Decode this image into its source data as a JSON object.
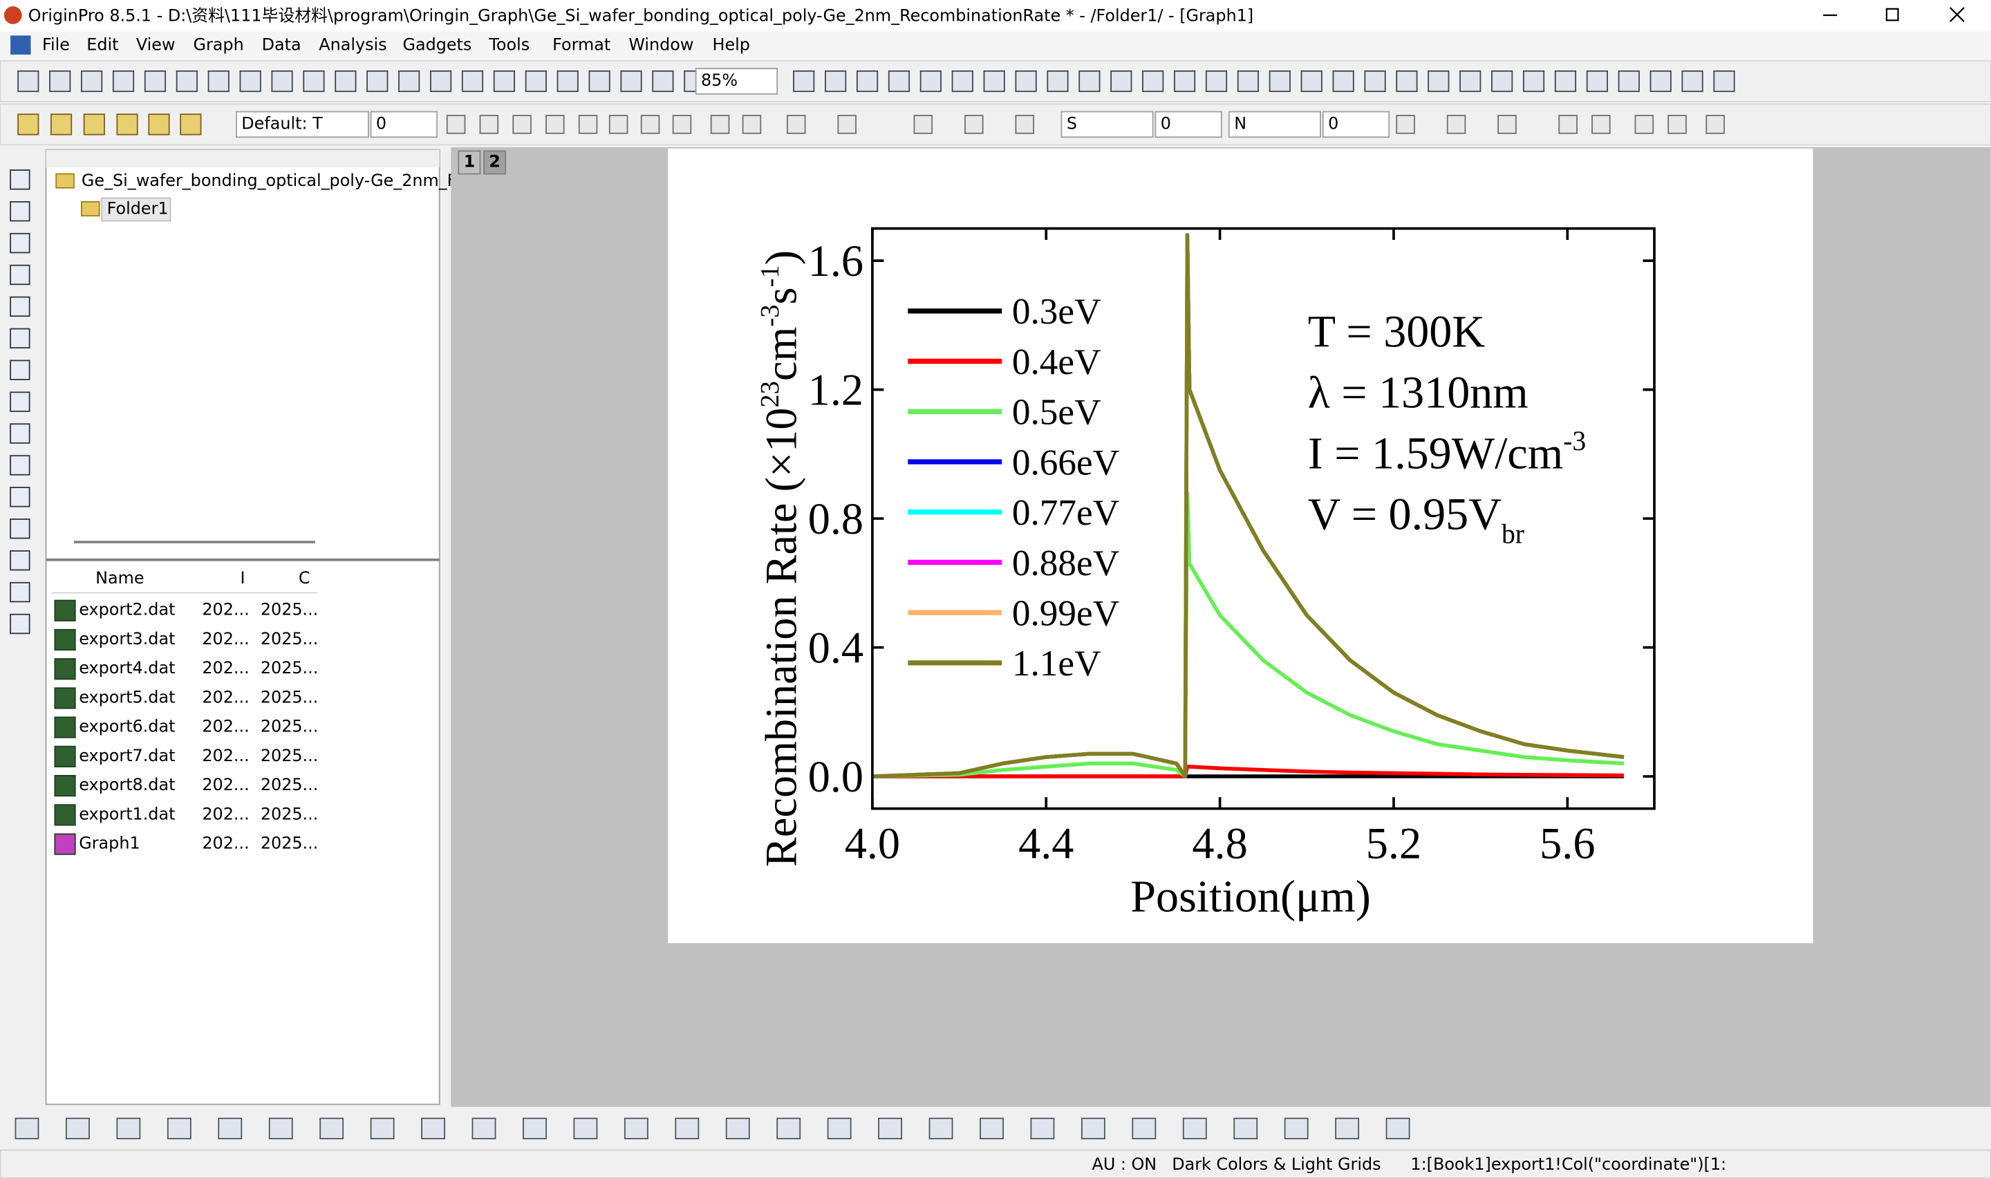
{
  "window": {
    "title": "OriginPro 8.5.1 - D:\\资料\\111毕设材料\\program\\Oringin_Graph\\Ge_Si_wafer_bonding_optical_poly-Ge_2nm_RecombinationRate * - /Folder1/ - [Graph1]"
  },
  "menu": [
    "File",
    "Edit",
    "View",
    "Graph",
    "Data",
    "Analysis",
    "Gadgets",
    "Tools",
    "Format",
    "Window",
    "Help"
  ],
  "toolbar": {
    "zoom": "85%",
    "font": "Default: T",
    "font_size": "0",
    "line_style": "S",
    "line_width": "0",
    "fill": "N",
    "fill_value": "0"
  },
  "project": {
    "root": "Ge_Si_wafer_bonding_optical_poly-Ge_2nm_F",
    "folder": "Folder1",
    "columns": [
      "Name",
      "I",
      "C"
    ],
    "files": [
      {
        "name": "export2.dat",
        "modified": "202...",
        "created": "2025..."
      },
      {
        "name": "export3.dat",
        "modified": "202...",
        "created": "2025..."
      },
      {
        "name": "export4.dat",
        "modified": "202...",
        "created": "2025..."
      },
      {
        "name": "export5.dat",
        "modified": "202...",
        "created": "2025..."
      },
      {
        "name": "export6.dat",
        "modified": "202...",
        "created": "2025..."
      },
      {
        "name": "export7.dat",
        "modified": "202...",
        "created": "2025..."
      },
      {
        "name": "export8.dat",
        "modified": "202...",
        "created": "2025..."
      },
      {
        "name": "export1.dat",
        "modified": "202...",
        "created": "2025..."
      },
      {
        "name": "Graph1",
        "modified": "202...",
        "created": "2025..."
      }
    ]
  },
  "pages": [
    "1",
    "2"
  ],
  "status": [
    "AU : ON",
    "Dark Colors & Light Grids",
    "1:[Book1]export1!Col(\"coordinate\")[1:"
  ],
  "chart_data": {
    "type": "line",
    "xlabel": "Position(μm)",
    "ylabel_parts": [
      {
        "text": "Recombination Rate (×10"
      },
      {
        "text": "23",
        "sup": true
      },
      {
        "text": "cm"
      },
      {
        "text": "-3",
        "sup": true
      },
      {
        "text": "s"
      },
      {
        "text": "-1",
        "sup": true
      },
      {
        "text": ")"
      }
    ],
    "annotations": [
      {
        "parts": [
          {
            "text": "T = 300K"
          }
        ]
      },
      {
        "parts": [
          {
            "text": "λ = 1310nm"
          }
        ]
      },
      {
        "parts": [
          {
            "text": "I = 1.59W/cm"
          },
          {
            "text": "-3",
            "sup": true
          }
        ]
      },
      {
        "parts": [
          {
            "text": "V = 0.95V"
          },
          {
            "text": "br",
            "sub": true
          }
        ]
      }
    ],
    "xlim": [
      4.0,
      5.8
    ],
    "ylim": [
      -0.1,
      1.7
    ],
    "xticks": [
      {
        "value": 4,
        "label": "4.0"
      },
      4.4,
      4.8,
      5.2,
      5.6
    ],
    "yticks": [
      {
        "value": 0,
        "label": "0.0"
      },
      0.4,
      0.8,
      1.2,
      1.6
    ],
    "x": [
      4.0,
      4.2,
      4.3,
      4.4,
      4.5,
      4.6,
      4.7,
      4.72,
      4.725,
      4.73,
      4.8,
      4.9,
      5.0,
      5.1,
      5.2,
      5.3,
      5.4,
      5.5,
      5.6,
      5.73
    ],
    "series": [
      {
        "name": "0.3eV",
        "color": "#000000",
        "values": [
          0,
          0,
          0,
          0,
          0,
          0,
          0,
          0,
          0,
          0,
          0,
          0,
          0,
          0,
          0,
          0,
          0,
          0,
          0,
          0
        ]
      },
      {
        "name": "0.4eV",
        "color": "#ff0000",
        "values": [
          0,
          0,
          0,
          0,
          0,
          0,
          0,
          0,
          0.03,
          0.03,
          0.025,
          0.02,
          0.015,
          0.012,
          0.01,
          0.008,
          0.006,
          0.005,
          0.004,
          0.003
        ]
      },
      {
        "name": "0.5eV",
        "color": "#66ee55",
        "values": [
          0,
          0.005,
          0.02,
          0.03,
          0.04,
          0.04,
          0.02,
          0,
          0.88,
          0.66,
          0.5,
          0.36,
          0.26,
          0.19,
          0.14,
          0.1,
          0.08,
          0.06,
          0.05,
          0.04
        ]
      },
      {
        "name": "0.66eV",
        "color": "#0000ee",
        "values": [
          0,
          0.01,
          0.04,
          0.06,
          0.07,
          0.07,
          0.04,
          0,
          1.68,
          1.2,
          0.95,
          0.7,
          0.5,
          0.36,
          0.26,
          0.19,
          0.14,
          0.1,
          0.08,
          0.06
        ]
      },
      {
        "name": "0.77eV",
        "color": "#00ffff",
        "values": [
          0,
          0.01,
          0.04,
          0.06,
          0.07,
          0.07,
          0.04,
          0,
          1.68,
          1.2,
          0.95,
          0.7,
          0.5,
          0.36,
          0.26,
          0.19,
          0.14,
          0.1,
          0.08,
          0.06
        ]
      },
      {
        "name": "0.88eV",
        "color": "#ff00ff",
        "values": [
          0,
          0.01,
          0.04,
          0.06,
          0.07,
          0.07,
          0.04,
          0,
          1.68,
          1.2,
          0.95,
          0.7,
          0.5,
          0.36,
          0.26,
          0.19,
          0.14,
          0.1,
          0.08,
          0.06
        ]
      },
      {
        "name": "0.99eV",
        "color": "#ffb366",
        "values": [
          0,
          0.01,
          0.04,
          0.06,
          0.07,
          0.07,
          0.04,
          0,
          1.68,
          1.2,
          0.95,
          0.7,
          0.5,
          0.36,
          0.26,
          0.19,
          0.14,
          0.1,
          0.08,
          0.06
        ]
      },
      {
        "name": "1.1eV",
        "color": "#808020",
        "values": [
          0,
          0.01,
          0.04,
          0.06,
          0.07,
          0.07,
          0.04,
          0,
          1.68,
          1.2,
          0.95,
          0.7,
          0.5,
          0.36,
          0.26,
          0.19,
          0.14,
          0.1,
          0.08,
          0.06
        ]
      }
    ]
  }
}
